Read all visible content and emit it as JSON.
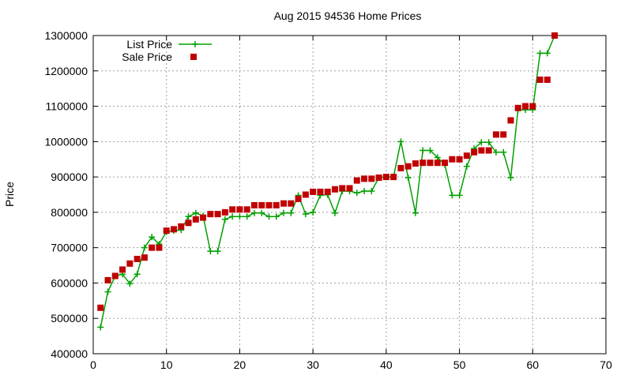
{
  "chart_data": {
    "type": "line",
    "title": "Aug 2015 94536 Home Prices",
    "xlabel": "",
    "ylabel": "Price",
    "xlim": [
      0,
      70
    ],
    "ylim": [
      400000,
      1300000
    ],
    "x_ticks": [
      "0",
      "10",
      "20",
      "30",
      "40",
      "50",
      "60",
      "70"
    ],
    "y_ticks": [
      "400000",
      "500000",
      "600000",
      "700000",
      "800000",
      "900000",
      "1000000",
      "1100000",
      "1200000",
      "1300000"
    ],
    "grid": true,
    "legend_position": "top-left",
    "series": [
      {
        "name": "List Price",
        "style": "line-with-plus-markers",
        "color": "#00a000",
        "points": [
          [
            1,
            475000
          ],
          [
            2,
            575000
          ],
          [
            3,
            620000
          ],
          [
            4,
            625000
          ],
          [
            5,
            598000
          ],
          [
            6,
            625000
          ],
          [
            7,
            700000
          ],
          [
            8,
            730000
          ],
          [
            9,
            710000
          ],
          [
            10,
            745000
          ],
          [
            11,
            748000
          ],
          [
            12,
            750000
          ],
          [
            13,
            788000
          ],
          [
            14,
            798000
          ],
          [
            15,
            790000
          ],
          [
            16,
            690000
          ],
          [
            17,
            690000
          ],
          [
            18,
            780000
          ],
          [
            19,
            788000
          ],
          [
            20,
            788000
          ],
          [
            21,
            788000
          ],
          [
            22,
            798000
          ],
          [
            23,
            798000
          ],
          [
            24,
            788000
          ],
          [
            25,
            788000
          ],
          [
            26,
            798000
          ],
          [
            27,
            798000
          ],
          [
            28,
            848000
          ],
          [
            29,
            795000
          ],
          [
            30,
            800000
          ],
          [
            31,
            848000
          ],
          [
            32,
            850000
          ],
          [
            33,
            798000
          ],
          [
            34,
            860000
          ],
          [
            35,
            860000
          ],
          [
            36,
            855000
          ],
          [
            37,
            860000
          ],
          [
            38,
            860000
          ],
          [
            39,
            898000
          ],
          [
            40,
            900000
          ],
          [
            41,
            900000
          ],
          [
            42,
            1000000
          ],
          [
            43,
            898000
          ],
          [
            44,
            798000
          ],
          [
            45,
            975000
          ],
          [
            46,
            975000
          ],
          [
            47,
            955000
          ],
          [
            48,
            935000
          ],
          [
            49,
            848000
          ],
          [
            50,
            848000
          ],
          [
            51,
            930000
          ],
          [
            52,
            980000
          ],
          [
            53,
            998000
          ],
          [
            54,
            998000
          ],
          [
            55,
            970000
          ],
          [
            56,
            970000
          ],
          [
            57,
            898000
          ],
          [
            58,
            1090000
          ],
          [
            59,
            1090000
          ],
          [
            60,
            1090000
          ],
          [
            61,
            1250000
          ],
          [
            62,
            1250000
          ],
          [
            63,
            1300000
          ]
        ]
      },
      {
        "name": "Sale Price",
        "style": "square-markers",
        "color": "#c00000",
        "points": [
          [
            1,
            530000
          ],
          [
            2,
            608000
          ],
          [
            3,
            620000
          ],
          [
            4,
            638000
          ],
          [
            5,
            655000
          ],
          [
            6,
            668000
          ],
          [
            7,
            672000
          ],
          [
            8,
            700000
          ],
          [
            9,
            700000
          ],
          [
            10,
            748000
          ],
          [
            11,
            752000
          ],
          [
            12,
            760000
          ],
          [
            13,
            770000
          ],
          [
            14,
            780000
          ],
          [
            15,
            785000
          ],
          [
            16,
            795000
          ],
          [
            17,
            795000
          ],
          [
            18,
            800000
          ],
          [
            19,
            808000
          ],
          [
            20,
            808000
          ],
          [
            21,
            808000
          ],
          [
            22,
            820000
          ],
          [
            23,
            820000
          ],
          [
            24,
            820000
          ],
          [
            25,
            820000
          ],
          [
            26,
            825000
          ],
          [
            27,
            825000
          ],
          [
            28,
            838000
          ],
          [
            29,
            850000
          ],
          [
            30,
            858000
          ],
          [
            31,
            858000
          ],
          [
            32,
            858000
          ],
          [
            33,
            865000
          ],
          [
            34,
            868000
          ],
          [
            35,
            868000
          ],
          [
            36,
            890000
          ],
          [
            37,
            895000
          ],
          [
            38,
            895000
          ],
          [
            39,
            898000
          ],
          [
            40,
            900000
          ],
          [
            41,
            900000
          ],
          [
            42,
            925000
          ],
          [
            43,
            930000
          ],
          [
            44,
            938000
          ],
          [
            45,
            940000
          ],
          [
            46,
            940000
          ],
          [
            47,
            940000
          ],
          [
            48,
            940000
          ],
          [
            49,
            950000
          ],
          [
            50,
            950000
          ],
          [
            51,
            960000
          ],
          [
            52,
            970000
          ],
          [
            53,
            975000
          ],
          [
            54,
            975000
          ],
          [
            55,
            1020000
          ],
          [
            56,
            1020000
          ],
          [
            57,
            1060000
          ],
          [
            58,
            1095000
          ],
          [
            59,
            1100000
          ],
          [
            60,
            1100000
          ],
          [
            61,
            1175000
          ],
          [
            62,
            1175000
          ],
          [
            63,
            1300000
          ]
        ]
      }
    ]
  }
}
